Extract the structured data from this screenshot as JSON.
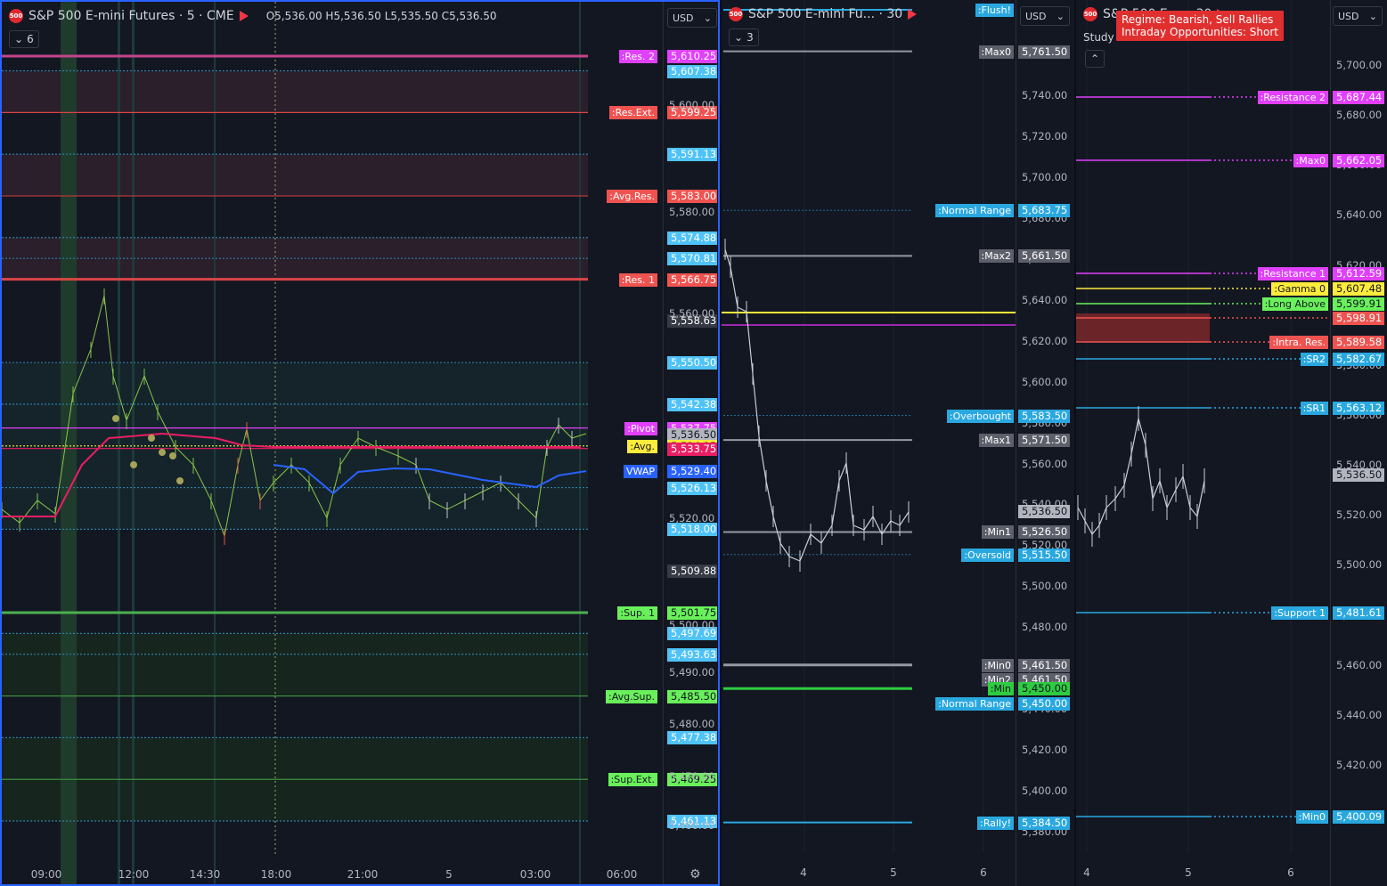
{
  "pane1": {
    "symbol": "S&P 500 E-mini Futures · 5 · CME",
    "logo": "500",
    "ohlc": {
      "o": "5,536.00",
      "h": "5,536.50",
      "l": "5,535.50",
      "c": "5,536.50"
    },
    "ohlc_labels": {
      "o": "O",
      "h": "H",
      "l": "L",
      "c": "C"
    },
    "indicator_count": "6",
    "currency": "USD",
    "time_labels": [
      "09:00",
      "12:00",
      "14:30",
      "18:00",
      "21:00",
      "5",
      "03:00",
      "06:00"
    ],
    "axis_ticks": [
      "5,600.00",
      "5,580.00",
      "5,560.00",
      "5,520.00",
      "5,500.00",
      "5,490.00",
      "5,480.00",
      "5,470.00",
      "5,460.00"
    ],
    "levels": [
      {
        "label": ":Res. 2",
        "price": "5,610.25",
        "label_bg": "#e040fb",
        "price_bg": "#e040fb",
        "line": "#c2448c"
      },
      {
        "label": "",
        "price": "5,607.38",
        "label_bg": "",
        "price_bg": "#4fc3f7",
        "line": "#2f7fa6"
      },
      {
        "label": ":Res.Ext.",
        "price": "5,599.25",
        "label_bg": "#ef5350",
        "price_bg": "#ef5350",
        "line": "#d84646"
      },
      {
        "label": "",
        "price": "5,591.13",
        "label_bg": "",
        "price_bg": "#4fc3f7",
        "line": "#2f7fa6"
      },
      {
        "label": ":Avg.Res.",
        "price": "5,583.00",
        "label_bg": "#ef5350",
        "price_bg": "#ef5350",
        "line": "#b23b3b"
      },
      {
        "label": "",
        "price": "5,574.88",
        "label_bg": "",
        "price_bg": "#4fc3f7",
        "line": "#2f7fa6"
      },
      {
        "label": "",
        "price": "5,570.81",
        "label_bg": "",
        "price_bg": "#4fc3f7",
        "line": "#2f7fa6"
      },
      {
        "label": ":Res. 1",
        "price": "5,566.75",
        "label_bg": "#ef5350",
        "price_bg": "#ef5350",
        "line": "#d84646"
      },
      {
        "label": "",
        "price": "5,558.63",
        "label_bg": "",
        "price_bg": "#363a45",
        "line": ""
      },
      {
        "label": "",
        "price": "5,550.50",
        "label_bg": "",
        "price_bg": "#4fc3f7",
        "line": "#2f7fa6"
      },
      {
        "label": "",
        "price": "5,542.38",
        "label_bg": "",
        "price_bg": "#4fc3f7",
        "line": "#2f7fa6"
      },
      {
        "label": ":Pivot",
        "price": "5,537.75",
        "label_bg": "#e040fb",
        "price_bg": "#e040fb",
        "line": "#e040fb"
      },
      {
        "label": "",
        "price": "5,536.50",
        "label_bg": "",
        "price_bg": "#b2b5be",
        "line": ""
      },
      {
        "label": ":Avg.",
        "price": "5,534.25",
        "label_bg": "#ffeb3b",
        "price_bg": "#ffeb3b",
        "line": "#ffeb3b"
      },
      {
        "label": "",
        "price": "5,533.75",
        "label_bg": "",
        "price_bg": "#e91e63",
        "line": "#e91e63"
      },
      {
        "label": "VWAP",
        "price": "5,529.40",
        "label_bg": "#2962ff",
        "price_bg": "#2962ff",
        "line": ""
      },
      {
        "label": "",
        "price": "5,526.13",
        "label_bg": "",
        "price_bg": "#4fc3f7",
        "line": "#2f7fa6"
      },
      {
        "label": "",
        "price": "5,518.00",
        "label_bg": "",
        "price_bg": "#4fc3f7",
        "line": "#2f7fa6"
      },
      {
        "label": "",
        "price": "5,509.88",
        "label_bg": "",
        "price_bg": "#363a45",
        "line": ""
      },
      {
        "label": ":Sup. 1",
        "price": "5,501.75",
        "label_bg": "#69f05a",
        "price_bg": "#69f05a",
        "line": "#4caf50"
      },
      {
        "label": "",
        "price": "5,497.69",
        "label_bg": "",
        "price_bg": "#4fc3f7",
        "line": "#2f7fa6"
      },
      {
        "label": "",
        "price": "5,493.63",
        "label_bg": "",
        "price_bg": "#4fc3f7",
        "line": "#2f7fa6"
      },
      {
        "label": ":Avg.Sup.",
        "price": "5,485.50",
        "label_bg": "#69f05a",
        "price_bg": "#69f05a",
        "line": "#3e8e41"
      },
      {
        "label": "",
        "price": "5,477.38",
        "label_bg": "",
        "price_bg": "#4fc3f7",
        "line": "#2f7fa6"
      },
      {
        "label": ":Sup.Ext.",
        "price": "5,469.25",
        "label_bg": "#69f05a",
        "price_bg": "#69f05a",
        "line": "#3e8e41"
      },
      {
        "label": "",
        "price": "5,461.13",
        "label_bg": "",
        "price_bg": "#4fc3f7",
        "line": "#2f7fa6"
      }
    ]
  },
  "pane2": {
    "symbol": "S&P 500 E-mini Fu... · 30",
    "logo": "500",
    "indicator_count": "3",
    "currency": "USD",
    "time_labels": [
      "4",
      "5",
      "6"
    ],
    "axis_ticks": [
      "5,740.00",
      "5,720.00",
      "5,700.00",
      "5,680.00",
      "5,660.00",
      "5,640.00",
      "5,620.00",
      "5,600.00",
      "5,580.00",
      "5,560.00",
      "5,540.00",
      "5,520.00",
      "5,500.00",
      "5,480.00",
      "5,460.00",
      "5,440.00",
      "5,420.00",
      "5,400.00",
      "5,380.00"
    ],
    "levels": [
      {
        "label": ":Flush!",
        "price": "",
        "label_bg": "#29a8e0",
        "price_bg": "",
        "line": "#29a8e0"
      },
      {
        "label": ":Max0",
        "price": "5,761.50",
        "label_bg": "#5d606b",
        "price_bg": "#5d606b",
        "line": "#9598a1"
      },
      {
        "label": ":Normal Range",
        "price": "5,683.75",
        "label_bg": "#29a8e0",
        "price_bg": "#29a8e0",
        "line": "#1e6f99"
      },
      {
        "label": ":Max2",
        "price": "5,661.50",
        "label_bg": "#5d606b",
        "price_bg": "#5d606b",
        "line": "#9598a1"
      },
      {
        "label": ":Overbought",
        "price": "5,583.50",
        "label_bg": "#29a8e0",
        "price_bg": "#29a8e0",
        "line": "#1e6f99"
      },
      {
        "label": ":Max1",
        "price": "5,571.50",
        "label_bg": "#5d606b",
        "price_bg": "#5d606b",
        "line": "#9598a1"
      },
      {
        "label": "",
        "price": "5,536.50",
        "label_bg": "",
        "price_bg": "#b2b5be",
        "line": ""
      },
      {
        "label": ":Min1",
        "price": "5,526.50",
        "label_bg": "#5d606b",
        "price_bg": "#5d606b",
        "line": "#9598a1"
      },
      {
        "label": ":Oversold",
        "price": "5,515.50",
        "label_bg": "#29a8e0",
        "price_bg": "#29a8e0",
        "line": "#1e6f99"
      },
      {
        "label": ":Min0",
        "price": "5,461.50",
        "label_bg": "#5d606b",
        "price_bg": "#5d606b",
        "line": "#9598a1"
      },
      {
        "label": ":Min2",
        "price": "5,461.50",
        "label_bg": "#5d606b",
        "price_bg": "#5d606b",
        "line": ""
      },
      {
        "label": ":Min",
        "price": "5,450.00",
        "label_bg": "#2ecc40",
        "price_bg": "#2ecc40",
        "line": "#2ecc40"
      },
      {
        "label": ":Normal Range",
        "price": "5,450.00",
        "label_bg": "#29a8e0",
        "price_bg": "#29a8e0",
        "line": ""
      },
      {
        "label": ":Rally!",
        "price": "5,384.50",
        "label_bg": "#29a8e0",
        "price_bg": "#29a8e0",
        "line": "#29a8e0"
      }
    ]
  },
  "pane3": {
    "symbol": "S&P 500 E-... · 30",
    "logo": "500",
    "study_label": "Study",
    "currency": "USD",
    "regime_line1": "Regime: Bearish, Sell Rallies",
    "regime_line2": "Intraday Opportunities: Short",
    "time_labels": [
      "4",
      "5",
      "6"
    ],
    "axis_ticks": [
      "5,700.00",
      "5,680.00",
      "5,660.00",
      "5,640.00",
      "5,620.00",
      "5,580.00",
      "5,560.00",
      "5,540.00",
      "5,520.00",
      "5,500.00",
      "5,480.00",
      "5,460.00",
      "5,440.00",
      "5,420.00",
      "5,400.00"
    ],
    "levels": [
      {
        "label": ":Resistance 2",
        "price": "5,687.44",
        "label_bg": "#e040fb",
        "price_bg": "#e040fb",
        "line": "#e040fb"
      },
      {
        "label": ":Max0",
        "price": "5,662.05",
        "label_bg": "#e040fb",
        "price_bg": "#e040fb",
        "line": "#e040fb"
      },
      {
        "label": ":Resistance 1",
        "price": "5,612.59",
        "label_bg": "#e040fb",
        "price_bg": "#e040fb",
        "line": "#e040fb"
      },
      {
        "label": ":Gamma 0",
        "price": "5,607.48",
        "label_bg": "#ffeb3b",
        "price_bg": "#ffeb3b",
        "line": "#ffeb3b"
      },
      {
        "label": ":Long Above",
        "price": "5,599.91",
        "label_bg": "#69f05a",
        "price_bg": "#69f05a",
        "line": "#69f05a"
      },
      {
        "label": "",
        "price": "5,598.91",
        "label_bg": "",
        "price_bg": "#ef5350",
        "line": "#ef5350"
      },
      {
        "label": ":Intra. Res.",
        "price": "5,589.58",
        "label_bg": "#ef5350",
        "price_bg": "#ef5350",
        "line": "#ef5350"
      },
      {
        "label": ":SR2",
        "price": "5,582.67",
        "label_bg": "#29a8e0",
        "price_bg": "#29a8e0",
        "line": "#29a8e0"
      },
      {
        "label": ":SR1",
        "price": "5,563.12",
        "label_bg": "#29a8e0",
        "price_bg": "#29a8e0",
        "line": "#29a8e0"
      },
      {
        "label": "",
        "price": "5,536.50",
        "label_bg": "",
        "price_bg": "#b2b5be",
        "line": ""
      },
      {
        "label": ":Support 1",
        "price": "5,481.61",
        "label_bg": "#29a8e0",
        "price_bg": "#29a8e0",
        "line": "#29a8e0"
      },
      {
        "label": ":Min0",
        "price": "5,400.09",
        "label_bg": "#29a8e0",
        "price_bg": "#29a8e0",
        "line": "#29a8e0"
      }
    ]
  }
}
